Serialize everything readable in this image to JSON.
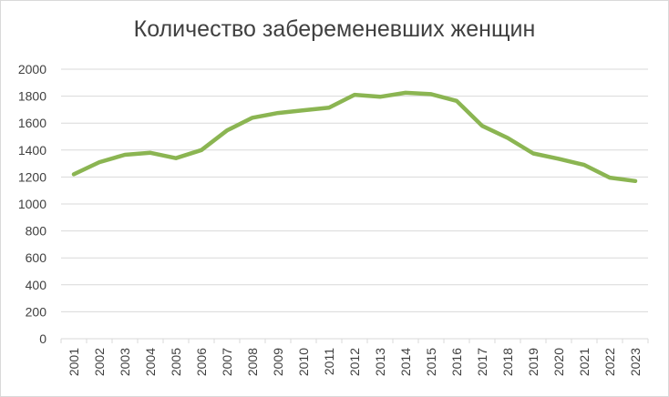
{
  "chart_data": {
    "type": "line",
    "title": "Количество забеременевших женщин",
    "xlabel": "",
    "ylabel": "",
    "categories": [
      "2001",
      "2002",
      "2003",
      "2004",
      "2005",
      "2006",
      "2007",
      "2008",
      "2009",
      "2010",
      "2011",
      "2012",
      "2013",
      "2014",
      "2015",
      "2016",
      "2017",
      "2018",
      "2019",
      "2020",
      "2021",
      "2022",
      "2023"
    ],
    "series": [
      {
        "values": [
          1220,
          1310,
          1365,
          1380,
          1340,
          1400,
          1545,
          1640,
          1675,
          1695,
          1715,
          1810,
          1795,
          1825,
          1815,
          1765,
          1580,
          1490,
          1375,
          1335,
          1290,
          1195,
          1170
        ]
      }
    ],
    "ylim": [
      0,
      2000
    ],
    "yticks": [
      "0",
      "200",
      "400",
      "600",
      "800",
      "1000",
      "1200",
      "1400",
      "1600",
      "1800",
      "2000"
    ],
    "grid": true,
    "legend": "none",
    "colors": {
      "line": "#8bb552",
      "grid": "#d9d9d9",
      "text": "#404040"
    }
  }
}
